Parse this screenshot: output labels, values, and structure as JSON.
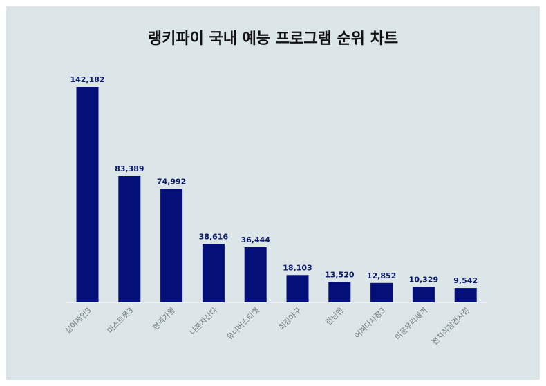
{
  "chart_data": {
    "type": "bar",
    "title": "랭키파이 국내 예능 프로그램 순위 차트",
    "categories": [
      "싱어게인3",
      "미스트롯3",
      "현역가왕",
      "나혼자산다",
      "유니버스티켓",
      "최강야구",
      "런닝맨",
      "어쩌다사장3",
      "미운우리새끼",
      "전지적참견시점"
    ],
    "values": [
      142182,
      83389,
      74992,
      38616,
      36444,
      18103,
      13520,
      12852,
      10329,
      9542
    ],
    "value_labels": [
      "142,182",
      "83,389",
      "74,992",
      "38,616",
      "36,444",
      "18,103",
      "13,520",
      "12,852",
      "10,329",
      "9,542"
    ],
    "xlabel": "",
    "ylabel": "",
    "ylim": [
      0,
      142182
    ],
    "grid": false,
    "bar_color": "#050f78",
    "background": "#dce5e8"
  }
}
